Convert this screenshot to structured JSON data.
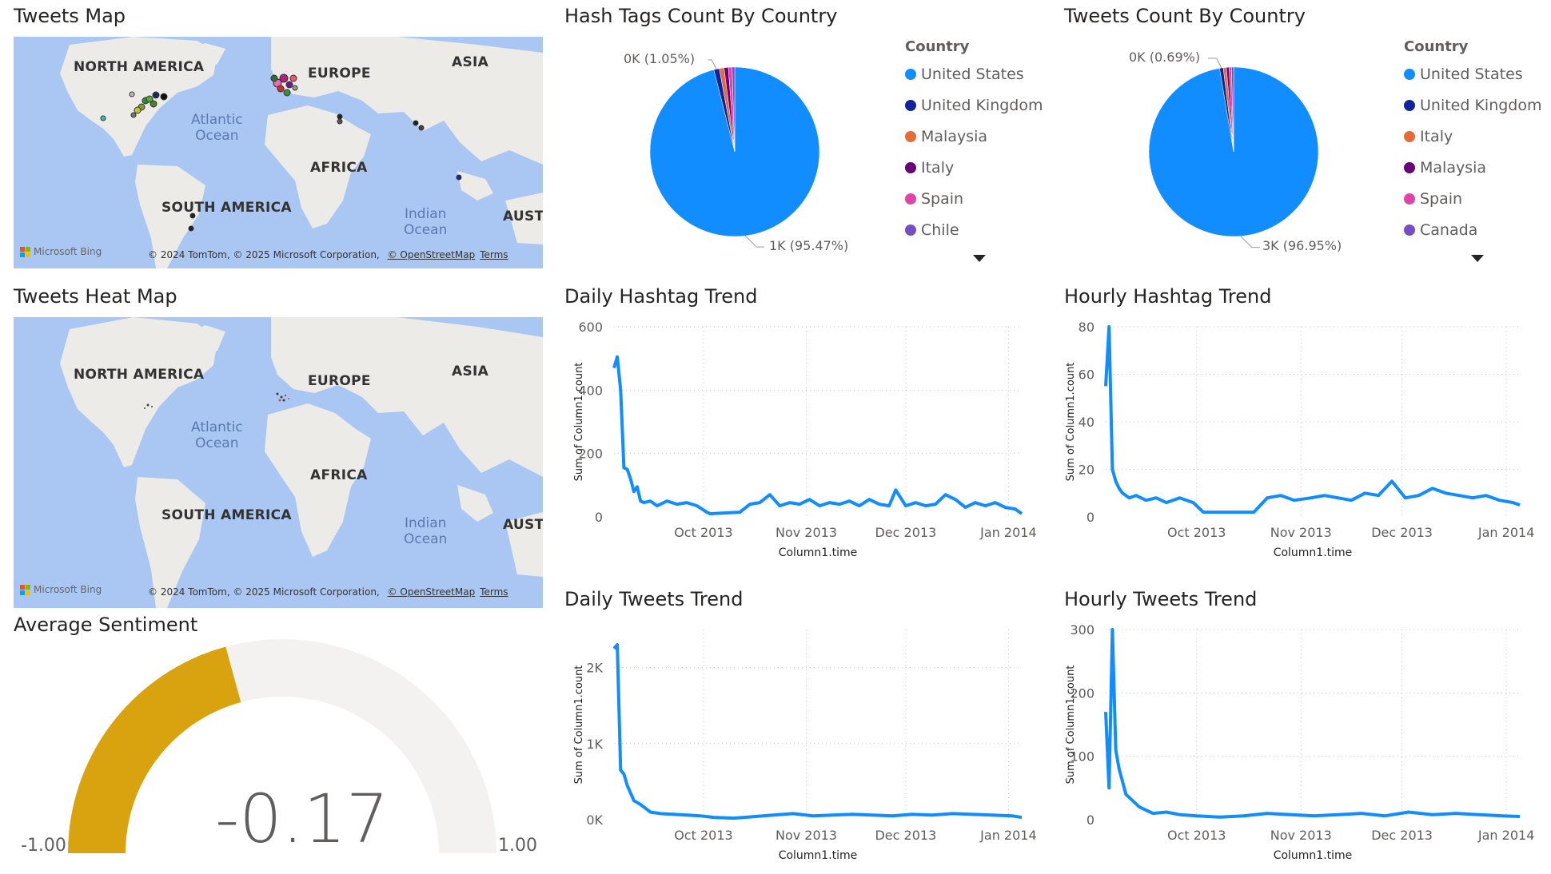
{
  "tiles": {
    "tweets_map": {
      "title": "Tweets Map",
      "labels": {
        "north_america": "NORTH AMERICA",
        "europe": "EUROPE",
        "asia": "ASIA",
        "africa": "AFRICA",
        "south_america": "SOUTH AMERICA",
        "austr": "AUSTI"
      },
      "oceans": {
        "atlantic_1": "Atlantic",
        "atlantic_2": "Ocean",
        "indian_1": "Indian",
        "indian_2": "Ocean"
      },
      "attribution": "© 2024 TomTom, © 2025 Microsoft Corporation, ",
      "osm_link": "© OpenStreetMap",
      "terms_link": "Terms",
      "bing": "Microsoft Bing"
    },
    "heat_map": {
      "title": "Tweets Heat Map",
      "labels": {
        "north_america": "NORTH AMERICA",
        "europe": "EUROPE",
        "asia": "ASIA",
        "africa": "AFRICA",
        "south_america": "SOUTH AMERICA",
        "austr": "AUSTI"
      },
      "oceans": {
        "atlantic_1": "Atlantic",
        "atlantic_2": "Ocean",
        "indian_1": "Indian",
        "indian_2": "Ocean"
      },
      "attribution": "© 2024 TomTom, © 2025 Microsoft Corporation, ",
      "osm_link": "© OpenStreetMap",
      "terms_link": "Terms",
      "bing": "Microsoft Bing"
    },
    "avg_sentiment": {
      "title": "Average Sentiment",
      "value_label": "-0.17",
      "min_label": "-1.00",
      "max_label": "1.00",
      "value": -0.17,
      "min": -1.0,
      "max": 1.0,
      "fill_color": "#d9a20f",
      "track_color": "#f3f2f1"
    },
    "hashtag_pie": {
      "title": "Hash Tags Count By Country",
      "legend_title": "Country",
      "legend": [
        "United States",
        "United Kingdom",
        "Malaysia",
        "Italy",
        "Spain",
        "Chile"
      ],
      "small_label": "0K (1.05%)",
      "big_label": "1K (95.47%)"
    },
    "tweets_pie": {
      "title": "Tweets Count By Country",
      "legend_title": "Country",
      "legend": [
        "United States",
        "United Kingdom",
        "Italy",
        "Malaysia",
        "Spain",
        "Canada"
      ],
      "small_label": "0K (0.69%)",
      "big_label": "3K (96.95%)"
    },
    "daily_hashtag": {
      "title": "Daily Hashtag Trend",
      "ylabel": "Sum of Column1.count",
      "xlabel": "Column1.time"
    },
    "hourly_hashtag": {
      "title": "Hourly Hashtag Trend",
      "ylabel": "Sum of Column1.count",
      "xlabel": "Column1.time"
    },
    "daily_tweets": {
      "title": "Daily Tweets Trend",
      "ylabel": "Sum of Column1.count",
      "xlabel": "Column1.time"
    },
    "hourly_tweets": {
      "title": "Hourly Tweets Trend",
      "ylabel": "Sum of Column1.count",
      "xlabel": "Column1.time"
    }
  },
  "colors": {
    "series": "#118dff",
    "legend": [
      "#118dff",
      "#12239e",
      "#e66c37",
      "#6b007b",
      "#e044a7",
      "#744ec2"
    ],
    "legend_tweets": [
      "#118dff",
      "#12239e",
      "#e66c37",
      "#6b007b",
      "#e044a7",
      "#744ec2"
    ]
  },
  "chart_data": [
    {
      "type": "pie",
      "title": "Hash Tags Count By Country",
      "categories": [
        "United States",
        "United Kingdom",
        "Malaysia",
        "Italy",
        "Spain",
        "Chile"
      ],
      "values": [
        95.47,
        1.05,
        0.9,
        0.8,
        0.7,
        0.5
      ],
      "unit": "%"
    },
    {
      "type": "pie",
      "title": "Tweets Count By Country",
      "categories": [
        "United States",
        "United Kingdom",
        "Italy",
        "Malaysia",
        "Spain",
        "Canada"
      ],
      "values": [
        96.95,
        0.69,
        0.6,
        0.5,
        0.45,
        0.4
      ],
      "unit": "%"
    },
    {
      "type": "line",
      "title": "Daily Hashtag Trend",
      "xlabel": "Column1.time",
      "ylabel": "Sum of Column1.count",
      "ylim": [
        0,
        600
      ],
      "yticks": [
        0,
        200,
        400,
        600
      ],
      "ytick_labels": [
        "0",
        "200",
        "400",
        "600"
      ],
      "xlim": [
        "2013-09-04",
        "2014-01-05"
      ],
      "xticks": [
        "2013-10-01",
        "2013-11-01",
        "2013-12-01",
        "2014-01-01"
      ],
      "xtick_labels": [
        "Oct 2013",
        "Nov 2013",
        "Dec 2013",
        "Jan 2014"
      ],
      "x": [
        "2013-09-04",
        "2013-09-05",
        "2013-09-06",
        "2013-09-07",
        "2013-09-08",
        "2013-09-09",
        "2013-09-10",
        "2013-09-11",
        "2013-09-12",
        "2013-09-13",
        "2013-09-15",
        "2013-09-17",
        "2013-09-20",
        "2013-09-23",
        "2013-09-26",
        "2013-09-29",
        "2013-10-02",
        "2013-10-03",
        "2013-10-12",
        "2013-10-15",
        "2013-10-18",
        "2013-10-21",
        "2013-10-24",
        "2013-10-27",
        "2013-10-30",
        "2013-11-02",
        "2013-11-05",
        "2013-11-08",
        "2013-11-11",
        "2013-11-14",
        "2013-11-17",
        "2013-11-20",
        "2013-11-23",
        "2013-11-26",
        "2013-11-28",
        "2013-12-01",
        "2013-12-04",
        "2013-12-07",
        "2013-12-10",
        "2013-12-13",
        "2013-12-16",
        "2013-12-19",
        "2013-12-22",
        "2013-12-25",
        "2013-12-28",
        "2013-12-31",
        "2014-01-03",
        "2014-01-05"
      ],
      "y": [
        470,
        505,
        400,
        155,
        150,
        120,
        80,
        95,
        50,
        45,
        50,
        35,
        50,
        40,
        45,
        35,
        15,
        10,
        15,
        40,
        45,
        70,
        35,
        45,
        40,
        55,
        35,
        45,
        40,
        50,
        35,
        55,
        40,
        35,
        85,
        35,
        45,
        35,
        40,
        70,
        55,
        30,
        45,
        35,
        45,
        30,
        25,
        10
      ]
    },
    {
      "type": "line",
      "title": "Hourly Hashtag Trend",
      "xlabel": "Column1.time",
      "ylabel": "Sum of Column1.count",
      "ylim": [
        0,
        80
      ],
      "yticks": [
        0,
        20,
        40,
        60,
        80
      ],
      "ytick_labels": [
        "0",
        "20",
        "40",
        "60",
        "80"
      ],
      "xlim": [
        "2013-09-04",
        "2014-01-05"
      ],
      "xticks": [
        "2013-10-01",
        "2013-11-01",
        "2013-12-01",
        "2014-01-01"
      ],
      "xtick_labels": [
        "Oct 2013",
        "Nov 2013",
        "Dec 2013",
        "Jan 2014"
      ],
      "x": [
        "2013-09-04",
        "2013-09-05",
        "2013-09-06",
        "2013-09-07",
        "2013-09-08",
        "2013-09-09",
        "2013-09-11",
        "2013-09-13",
        "2013-09-16",
        "2013-09-19",
        "2013-09-22",
        "2013-09-26",
        "2013-09-30",
        "2013-10-03",
        "2013-10-10",
        "2013-10-18",
        "2013-10-22",
        "2013-10-26",
        "2013-10-30",
        "2013-11-04",
        "2013-11-08",
        "2013-11-12",
        "2013-11-16",
        "2013-11-20",
        "2013-11-24",
        "2013-11-28",
        "2013-12-02",
        "2013-12-06",
        "2013-12-10",
        "2013-12-14",
        "2013-12-18",
        "2013-12-22",
        "2013-12-26",
        "2013-12-30",
        "2014-01-03",
        "2014-01-05"
      ],
      "y": [
        55,
        80,
        20,
        15,
        12,
        10,
        8,
        9,
        7,
        8,
        6,
        8,
        6,
        2,
        2,
        2,
        8,
        9,
        7,
        8,
        9,
        8,
        7,
        10,
        9,
        15,
        8,
        9,
        12,
        10,
        9,
        8,
        9,
        7,
        6,
        5
      ]
    },
    {
      "type": "line",
      "title": "Daily Tweets Trend",
      "xlabel": "Column1.time",
      "ylabel": "Sum of Column1.count",
      "ylim": [
        0,
        2500
      ],
      "yticks": [
        0,
        1000,
        2000
      ],
      "ytick_labels": [
        "0K",
        "1K",
        "2K"
      ],
      "xlim": [
        "2013-09-04",
        "2014-01-05"
      ],
      "xticks": [
        "2013-10-01",
        "2013-11-01",
        "2013-12-01",
        "2014-01-01"
      ],
      "xtick_labels": [
        "Oct 2013",
        "Nov 2013",
        "Dec 2013",
        "Jan 2014"
      ],
      "x": [
        "2013-09-04",
        "2013-09-05",
        "2013-09-06",
        "2013-09-07",
        "2013-09-08",
        "2013-09-10",
        "2013-09-12",
        "2013-09-15",
        "2013-09-18",
        "2013-09-22",
        "2013-09-26",
        "2013-09-30",
        "2013-10-04",
        "2013-10-10",
        "2013-10-16",
        "2013-10-22",
        "2013-10-28",
        "2013-11-03",
        "2013-11-09",
        "2013-11-15",
        "2013-11-21",
        "2013-11-27",
        "2013-12-03",
        "2013-12-09",
        "2013-12-15",
        "2013-12-21",
        "2013-12-27",
        "2014-01-02",
        "2014-01-05"
      ],
      "y": [
        2250,
        2300,
        650,
        600,
        450,
        250,
        200,
        100,
        80,
        70,
        60,
        50,
        30,
        20,
        40,
        60,
        80,
        50,
        60,
        70,
        60,
        50,
        70,
        60,
        80,
        70,
        60,
        50,
        30
      ]
    },
    {
      "type": "line",
      "title": "Hourly Tweets Trend",
      "xlabel": "Column1.time",
      "ylabel": "Sum of Column1.count",
      "ylim": [
        0,
        300
      ],
      "yticks": [
        0,
        100,
        200,
        300
      ],
      "ytick_labels": [
        "0",
        "100",
        "200",
        "300"
      ],
      "xlim": [
        "2013-09-04",
        "2014-01-05"
      ],
      "xticks": [
        "2013-10-01",
        "2013-11-01",
        "2013-12-01",
        "2014-01-01"
      ],
      "xtick_labels": [
        "Oct 2013",
        "Nov 2013",
        "Dec 2013",
        "Jan 2014"
      ],
      "x": [
        "2013-09-04",
        "2013-09-05",
        "2013-09-06",
        "2013-09-07",
        "2013-09-08",
        "2013-09-09",
        "2013-09-10",
        "2013-09-12",
        "2013-09-14",
        "2013-09-16",
        "2013-09-18",
        "2013-09-22",
        "2013-09-26",
        "2013-10-01",
        "2013-10-08",
        "2013-10-15",
        "2013-10-22",
        "2013-10-29",
        "2013-11-05",
        "2013-11-12",
        "2013-11-19",
        "2013-11-26",
        "2013-12-03",
        "2013-12-10",
        "2013-12-17",
        "2013-12-24",
        "2013-12-31",
        "2014-01-05"
      ],
      "y": [
        170,
        50,
        300,
        110,
        80,
        60,
        40,
        30,
        20,
        15,
        10,
        12,
        8,
        6,
        4,
        6,
        10,
        8,
        6,
        8,
        10,
        6,
        12,
        8,
        10,
        8,
        6,
        5
      ]
    }
  ]
}
